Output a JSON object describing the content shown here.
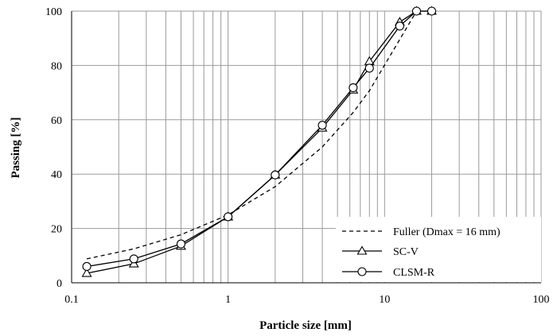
{
  "chart_data": {
    "type": "line",
    "xscale": "log",
    "xlim": [
      0.1,
      100
    ],
    "ylim": [
      0,
      100
    ],
    "x_ticks": [
      0.1,
      1,
      10,
      100
    ],
    "x_tick_labels": [
      "0.1",
      "1",
      "10",
      "100"
    ],
    "y_ticks": [
      0,
      20,
      40,
      60,
      80,
      100
    ],
    "y_tick_labels": [
      "0",
      "20",
      "40",
      "60",
      "80",
      "100"
    ],
    "xlabel": "Particle size [mm]",
    "ylabel": "Passing [%]",
    "grid": true,
    "legend_position": "bottom-right",
    "series": [
      {
        "name": "Fuller (Dmax = 16 mm)",
        "style": "dashed",
        "marker": "none",
        "x": [
          0.125,
          0.25,
          0.5,
          1,
          2,
          4,
          6.3,
          8,
          16
        ],
        "y": [
          8.8,
          12.5,
          17.7,
          25,
          35.4,
          50,
          62.7,
          70.7,
          100
        ]
      },
      {
        "name": "SC-V",
        "style": "solid",
        "marker": "triangle",
        "x": [
          0.125,
          0.25,
          0.5,
          1,
          2,
          4,
          6.3,
          8,
          12.5,
          16,
          20
        ],
        "y": [
          3.5,
          7,
          13.5,
          24.3,
          39.7,
          57,
          71,
          81.5,
          96,
          100,
          100
        ]
      },
      {
        "name": "CLSM-R",
        "style": "solid",
        "marker": "circle",
        "x": [
          0.125,
          0.25,
          0.5,
          1,
          2,
          4,
          6.3,
          8,
          12.5,
          16,
          20
        ],
        "y": [
          6,
          8.8,
          14.3,
          24.3,
          39.7,
          58,
          71.8,
          79,
          94.5,
          100,
          100
        ]
      }
    ]
  }
}
